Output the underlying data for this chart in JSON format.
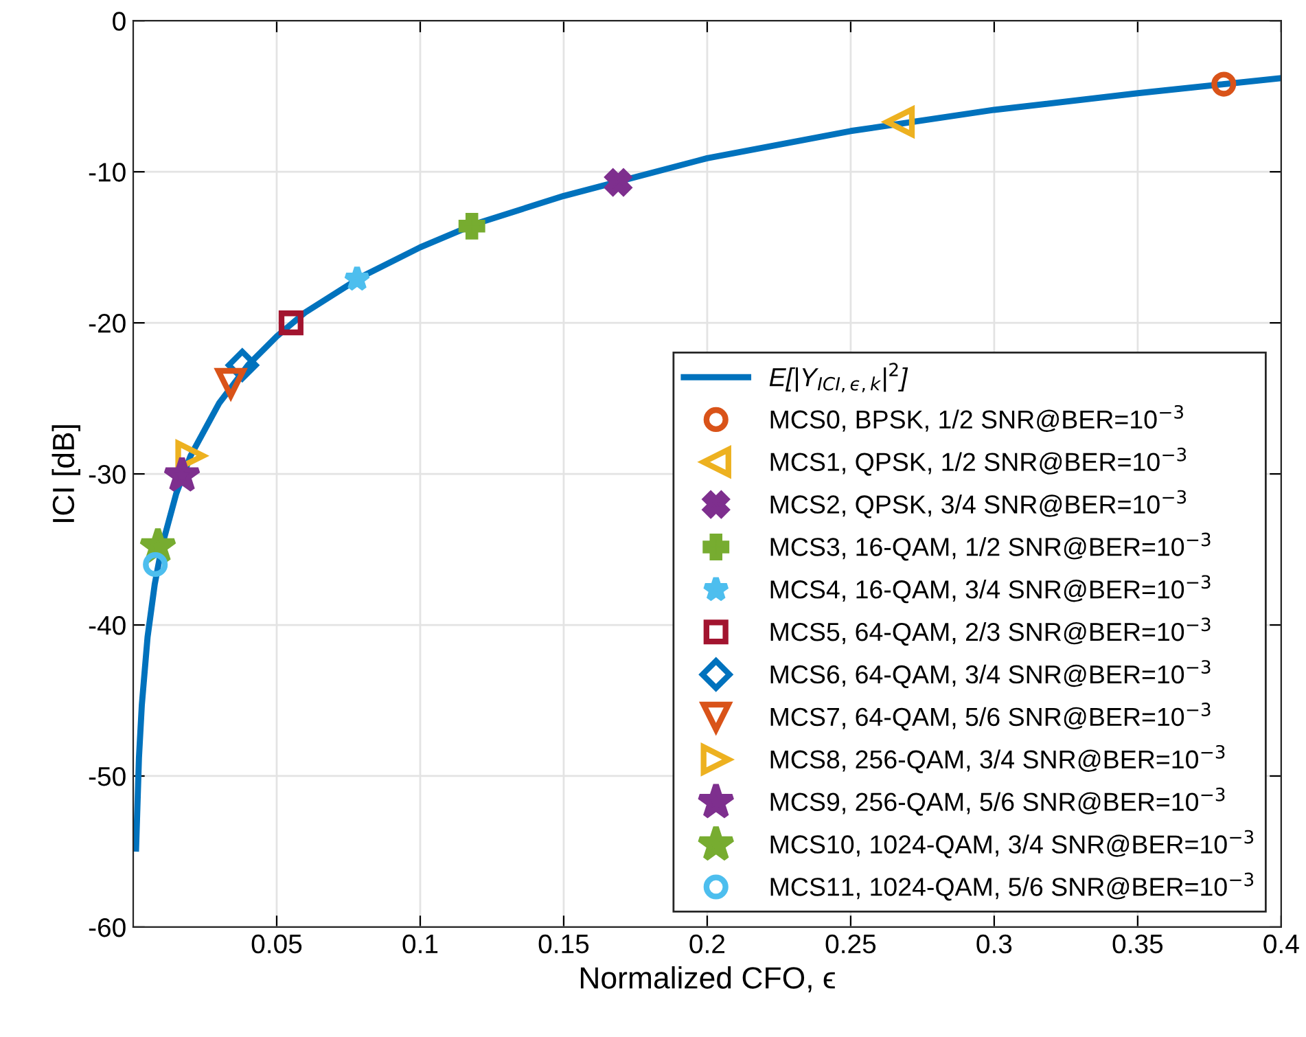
{
  "chart_data": {
    "type": "line",
    "xlabel": "Normalized CFO, ϵ",
    "ylabel": "ICI [dB]",
    "xlim": [
      0,
      0.4
    ],
    "xticks": [
      0.05,
      0.1,
      0.15,
      0.2,
      0.25,
      0.3,
      0.35,
      0.4
    ],
    "ylim": [
      -60,
      0
    ],
    "yticks": [
      -60,
      -50,
      -40,
      -30,
      -20,
      -10,
      0
    ],
    "grid": true,
    "legend": "bottom right",
    "series": [
      {
        "name": "E[|Y$_{ICI,ϵ,k}$|$^{2}$]",
        "color": "#0072bd",
        "marker": "none",
        "line_style": "solid",
        "x": [
          0.001,
          0.002,
          0.003,
          0.005,
          0.0075,
          0.01,
          0.015,
          0.02,
          0.03,
          0.04,
          0.05,
          0.06,
          0.08,
          0.1,
          0.12,
          0.15,
          0.2,
          0.25,
          0.3,
          0.35,
          0.4
        ],
        "values": [
          -54.8,
          -48.8,
          -45.3,
          -40.8,
          -37.3,
          -34.8,
          -31.3,
          -28.8,
          -25.3,
          -22.8,
          -20.9,
          -19.3,
          -16.9,
          -15,
          -13.4,
          -11.6,
          -9.1,
          -7.3,
          -5.9,
          -4.8,
          -3.8
        ]
      },
      {
        "name": "MCS0, BPSK, 1/2 SNR@BER=10$^{−3}$",
        "type": "scatter",
        "color": "#d95319",
        "marker": "circle",
        "x": [
          0.38
        ],
        "values": [
          -4.2
        ]
      },
      {
        "name": "MCS1, QPSK, 1/2 SNR@BER=10$^{−3}$",
        "type": "scatter",
        "color": "#edb120",
        "marker": "triangle-left",
        "x": [
          0.267
        ],
        "values": [
          -6.7
        ]
      },
      {
        "name": "MCS2, QPSK, 3/4 SNR@BER=10$^{−3}$",
        "type": "scatter",
        "color": "#7e2f8e",
        "marker": "x",
        "x": [
          0.169
        ],
        "values": [
          -10.7
        ]
      },
      {
        "name": "MCS3, 16-QAM, 1/2 SNR@BER=10$^{−3}$",
        "type": "scatter",
        "color": "#77ac30",
        "marker": "plus",
        "x": [
          0.118
        ],
        "values": [
          -13.6
        ]
      },
      {
        "name": "MCS4, 16-QAM, 3/4 SNR@BER=10$^{−3}$",
        "type": "scatter",
        "color": "#4dbeee",
        "marker": "asterisk",
        "x": [
          0.078
        ],
        "values": [
          -17.1
        ]
      },
      {
        "name": "MCS5, 64-QAM, 2/3 SNR@BER=10$^{−3}$",
        "type": "scatter",
        "color": "#a2142f",
        "marker": "square",
        "x": [
          0.055
        ],
        "values": [
          -20.0
        ]
      },
      {
        "name": "MCS6, 64-QAM, 3/4 SNR@BER=10$^{−3}$",
        "type": "scatter",
        "color": "#0072bd",
        "marker": "diamond",
        "x": [
          0.038
        ],
        "values": [
          -22.8
        ]
      },
      {
        "name": "MCS7, 64-QAM, 5/6 SNR@BER=10$^{−3}$",
        "type": "scatter",
        "color": "#d95319",
        "marker": "triangle-down",
        "x": [
          0.034
        ],
        "values": [
          -24.0
        ]
      },
      {
        "name": "MCS8, 256-QAM, 3/4 SNR@BER=10$^{−3}$",
        "type": "scatter",
        "color": "#edb120",
        "marker": "triangle-right",
        "x": [
          0.02
        ],
        "values": [
          -28.8
        ]
      },
      {
        "name": "MCS9, 256-QAM, 5/6 SNR@BER=10$^{−3}$",
        "type": "scatter",
        "color": "#7e2f8e",
        "marker": "star",
        "x": [
          0.017
        ],
        "values": [
          -30.1
        ]
      },
      {
        "name": "MCS10, 1024-QAM, 3/4 SNR@BER=10$^{−3}$",
        "type": "scatter",
        "color": "#77ac30",
        "marker": "star",
        "x": [
          0.0086
        ],
        "values": [
          -34.8
        ]
      },
      {
        "name": "MCS11, 1024-QAM, 5/6 SNR@BER=10$^{−3}$",
        "type": "scatter",
        "color": "#4dbeee",
        "marker": "circle",
        "x": [
          0.0077
        ],
        "values": [
          -36.0
        ]
      }
    ]
  }
}
